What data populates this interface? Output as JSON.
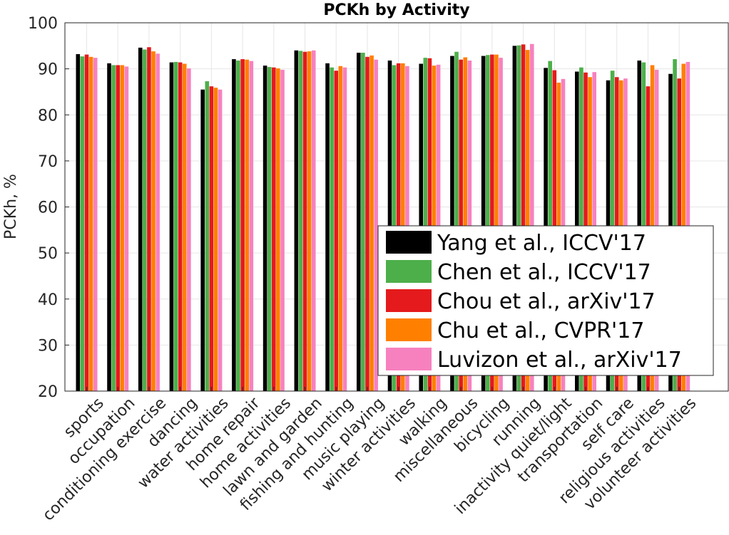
{
  "chart_data": {
    "type": "bar",
    "title": "PCKh by Activity",
    "xlabel": "",
    "ylabel": "PCKh, %",
    "ylim": [
      20,
      100
    ],
    "yticks": [
      20,
      30,
      40,
      50,
      60,
      70,
      80,
      90,
      100
    ],
    "grid": true,
    "legend_position": "lower-right",
    "categories": [
      "sports",
      "occupation",
      "conditioning exercise",
      "dancing",
      "water activities",
      "home repair",
      "home activities",
      "lawn and garden",
      "fishing and hunting",
      "music playing",
      "winter activities",
      "walking",
      "miscellaneous",
      "bicycling",
      "running",
      "inactivity quiet/light",
      "transportation",
      "self care",
      "religious activities",
      "volunteer activities"
    ],
    "series": [
      {
        "name": "Yang et al., ICCV'17",
        "color": "#000000",
        "values": [
          93.2,
          91.2,
          94.6,
          91.4,
          85.5,
          92.1,
          90.7,
          94.0,
          91.2,
          93.5,
          91.8,
          91.1,
          92.8,
          92.8,
          95.0,
          90.2,
          89.4,
          87.5,
          91.8,
          88.9
        ]
      },
      {
        "name": "Chen et al., ICCV'17",
        "color": "#4daf4a",
        "values": [
          92.7,
          90.8,
          94.2,
          91.5,
          87.3,
          91.8,
          90.4,
          93.9,
          90.3,
          93.5,
          90.8,
          92.4,
          93.7,
          93.0,
          95.1,
          91.7,
          90.3,
          89.6,
          91.4,
          92.1
        ]
      },
      {
        "name": "Chou et al., arXiv'17",
        "color": "#e41a1c",
        "values": [
          93.1,
          90.8,
          94.7,
          91.4,
          86.2,
          92.1,
          90.3,
          93.7,
          89.6,
          92.6,
          91.2,
          92.3,
          92.0,
          93.1,
          95.3,
          89.7,
          89.2,
          88.2,
          86.2,
          87.9
        ]
      },
      {
        "name": "Chu et al., CVPR'17",
        "color": "#ff7f00",
        "values": [
          92.6,
          90.8,
          93.8,
          91.1,
          85.9,
          92.0,
          90.1,
          93.8,
          90.6,
          92.9,
          91.2,
          90.7,
          92.5,
          93.1,
          94.1,
          87.0,
          88.2,
          87.5,
          90.8,
          91.1
        ]
      },
      {
        "name": "Luvizon et al., arXiv'17",
        "color": "#f781bf",
        "values": [
          92.4,
          90.5,
          93.3,
          90.1,
          85.5,
          91.7,
          89.8,
          94.0,
          90.3,
          92.0,
          90.6,
          90.9,
          91.8,
          92.4,
          95.4,
          87.8,
          89.3,
          87.9,
          89.8,
          91.5
        ]
      }
    ]
  }
}
